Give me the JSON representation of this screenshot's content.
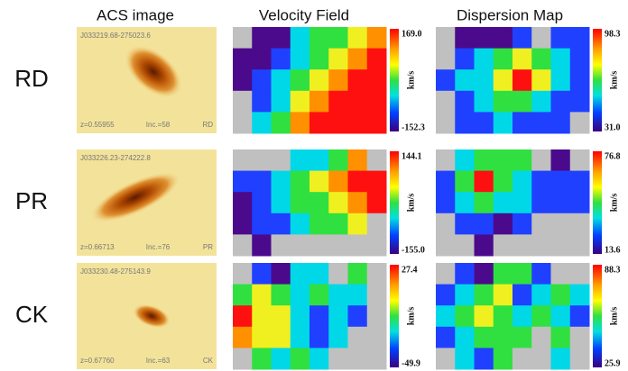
{
  "column_headers": [
    "ACS image",
    "Velocity Field",
    "Dispersion Map"
  ],
  "rows": [
    {
      "label": "RD",
      "acs": {
        "id": "J033219.68-275023.6",
        "z": "z=0.55955",
        "inc": "Inc.=58",
        "class": "RD"
      },
      "velocity": {
        "max": "169.0",
        "min": "-152.3",
        "unit": "km/s"
      },
      "dispersion": {
        "max": "98.3",
        "min": "31.0",
        "unit": "km/s"
      }
    },
    {
      "label": "PR",
      "acs": {
        "id": "J033226.23-274222.8",
        "z": "z=0.66713",
        "inc": "Inc.=76",
        "class": "PR"
      },
      "velocity": {
        "max": "144.1",
        "min": "-155.0",
        "unit": "km/s"
      },
      "dispersion": {
        "max": "76.8",
        "min": "13.6",
        "unit": "km/s"
      }
    },
    {
      "label": "CK",
      "acs": {
        "id": "J033230.48-275143.9",
        "z": "z=0.67760",
        "inc": "Inc.=63",
        "class": "CK"
      },
      "velocity": {
        "max": "27.4",
        "min": "-49.9",
        "unit": "km/s"
      },
      "dispersion": {
        "max": "88.3",
        "min": "25.9",
        "unit": "km/s"
      }
    }
  ]
}
